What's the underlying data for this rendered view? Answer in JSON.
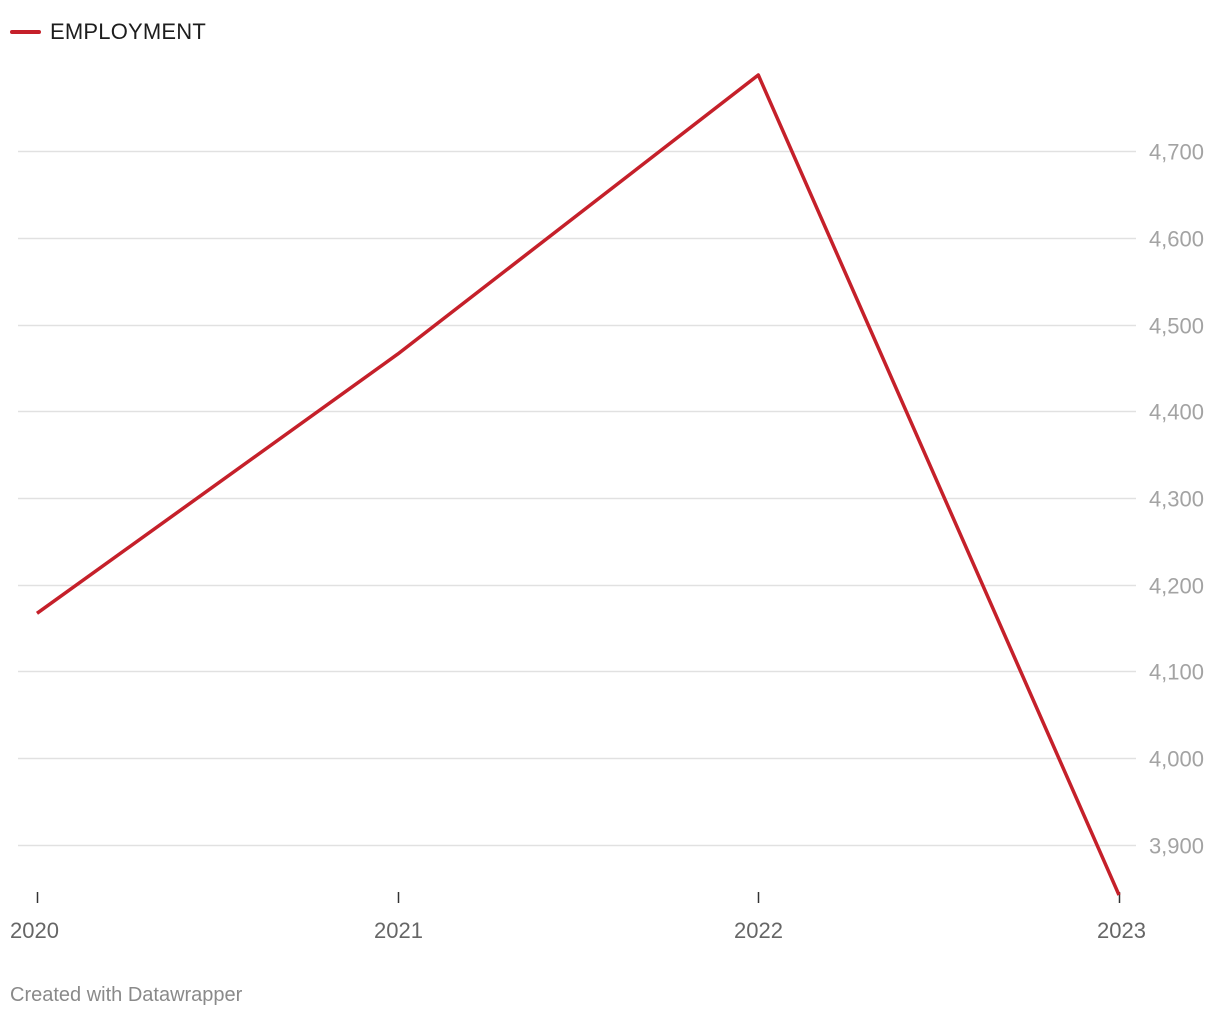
{
  "chart_data": {
    "type": "line",
    "x": [
      "2020",
      "2021",
      "2022",
      "2023"
    ],
    "series": [
      {
        "name": "EMPLOYMENT",
        "values": [
          4167,
          4466,
          4788,
          3842
        ],
        "color": "#c5202a"
      }
    ],
    "y_ticks": [
      3900,
      4000,
      4100,
      4200,
      4300,
      4400,
      4500,
      4600,
      4700
    ],
    "y_tick_labels": [
      "3,900",
      "4,000",
      "4,100",
      "4,200",
      "4,300",
      "4,400",
      "4,500",
      "4,600",
      "4,700"
    ],
    "ylim": [
      3842,
      4788
    ],
    "y_axis_side": "right",
    "grid": true,
    "legend_position": "top-left"
  },
  "credit": "Created with Datawrapper"
}
